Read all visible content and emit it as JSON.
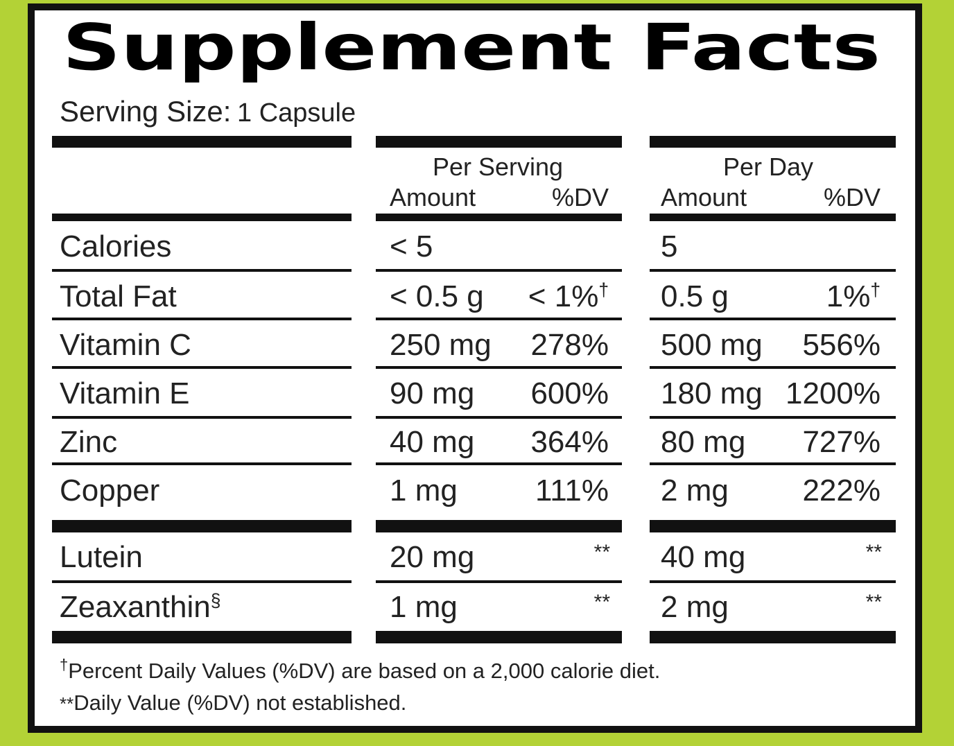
{
  "title": "Supplement Facts",
  "serving_size": {
    "label": "Serving Size:",
    "value": "1 Capsule"
  },
  "column_groups": [
    {
      "title": "Per Serving",
      "amount_header": "Amount",
      "dv_header": "%DV"
    },
    {
      "title": "Per Day",
      "amount_header": "Amount",
      "dv_header": "%DV"
    }
  ],
  "rows": [
    {
      "name": "Calories",
      "values": [
        {
          "amount": "< 5"
        },
        {
          "amount": "5"
        }
      ]
    },
    {
      "name": "Total Fat",
      "values": [
        {
          "amount": "< 0.5 g",
          "dv": "< 1%",
          "dv_note": "†"
        },
        {
          "amount": "0.5 g",
          "dv": "1%",
          "dv_note": "†"
        }
      ]
    },
    {
      "name": "Vitamin C",
      "values": [
        {
          "amount": "250 mg",
          "dv": "278%"
        },
        {
          "amount": "500 mg",
          "dv": "556%"
        }
      ]
    },
    {
      "name": "Vitamin E",
      "values": [
        {
          "amount": "90 mg",
          "dv": "600%"
        },
        {
          "amount": "180 mg",
          "dv": "1200%"
        }
      ]
    },
    {
      "name": "Zinc",
      "values": [
        {
          "amount": "40 mg",
          "dv": "364%"
        },
        {
          "amount": "80 mg",
          "dv": "727%"
        }
      ]
    },
    {
      "name": "Copper",
      "values": [
        {
          "amount": "1 mg",
          "dv": "111%"
        },
        {
          "amount": "2 mg",
          "dv": "222%"
        }
      ]
    },
    {
      "name": "Lutein",
      "values": [
        {
          "amount": "20 mg",
          "dv_star": "**"
        },
        {
          "amount": "40 mg",
          "dv_star": "**"
        }
      ]
    },
    {
      "name": "Zeaxanthin",
      "name_note": "§",
      "values": [
        {
          "amount": "1 mg",
          "dv_star": "**"
        },
        {
          "amount": "2 mg",
          "dv_star": "**"
        }
      ]
    }
  ],
  "footnotes": [
    {
      "mark": "†",
      "text": "Percent Daily Values (%DV) are based on a 2,000 calorie diet."
    },
    {
      "mark": "**",
      "text": "Daily Value (%DV) not established."
    }
  ]
}
